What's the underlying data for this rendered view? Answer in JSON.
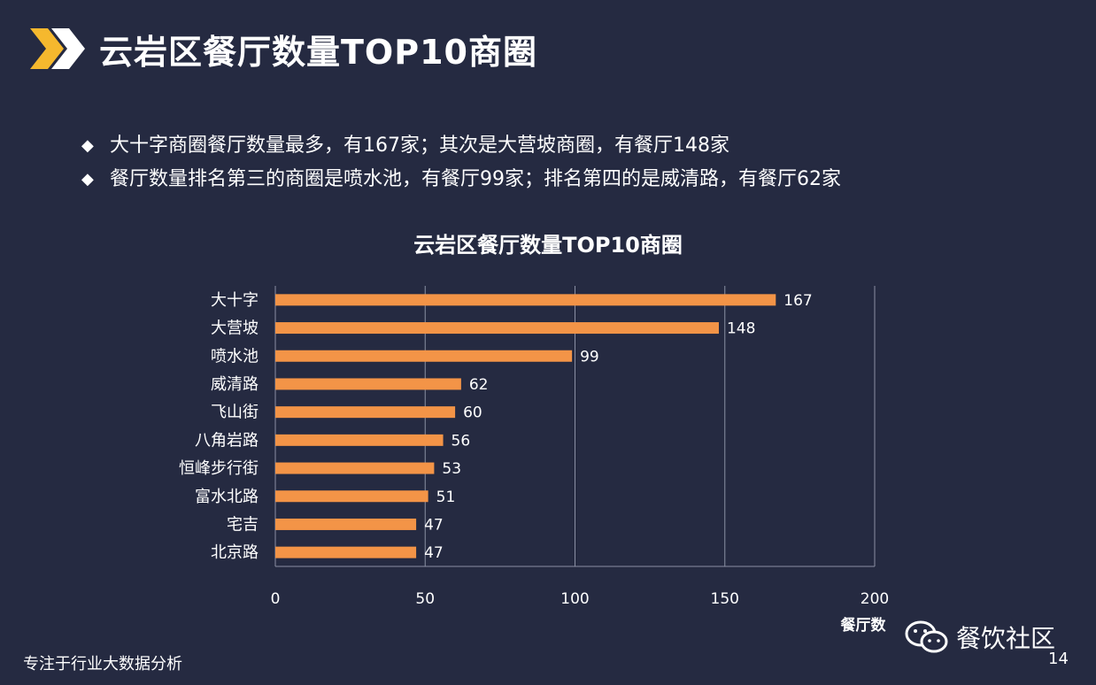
{
  "header": {
    "title": "云岩区餐厅数量TOP10商圈"
  },
  "bullets": [
    "大十字商圈餐厅数量最多，有167家；其次是大营坡商圈，有餐厅148家",
    "餐厅数量排名第三的商圈是喷水池，有餐厅99家；排名第四的是威清路，有餐厅62家"
  ],
  "chart_data": {
    "type": "bar",
    "orientation": "horizontal",
    "title": "云岩区餐厅数量TOP10商圈",
    "categories": [
      "大十字",
      "大营坡",
      "喷水池",
      "威清路",
      "飞山街",
      "八角岩路",
      "恒峰步行街",
      "富水北路",
      "宅吉",
      "北京路"
    ],
    "values": [
      167,
      148,
      99,
      62,
      60,
      56,
      53,
      51,
      47,
      47
    ],
    "xlabel": "餐厅数",
    "ylabel": "",
    "xlim": [
      0,
      200
    ],
    "xticks": [
      0,
      50,
      100,
      150,
      200
    ],
    "grid": true,
    "bar_color": "#f39447"
  },
  "footer": {
    "left_text": "专注于行业大数据分析",
    "brand": "餐饮社区",
    "page_number": "14"
  },
  "icons": {
    "header": "double-chevron-icon",
    "brand": "wechat-icon"
  }
}
